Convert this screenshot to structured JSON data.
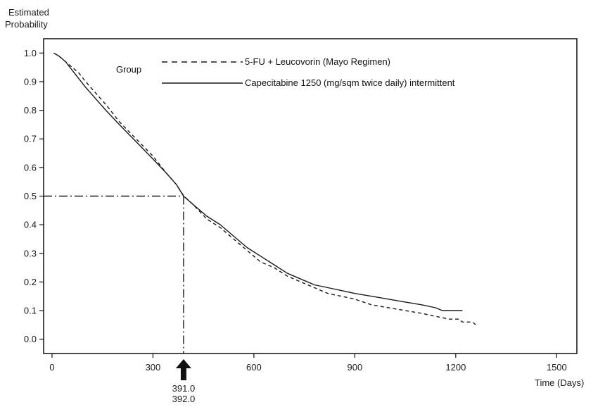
{
  "chart_data": {
    "type": "line",
    "ylabel_line1": "Estimated",
    "ylabel_line2": "Probability",
    "xlabel": "Time (Days)",
    "xlim": [
      -25,
      1560
    ],
    "ylim": [
      -0.05,
      1.05
    ],
    "xticks": [
      0,
      300,
      600,
      900,
      1200,
      1500
    ],
    "yticks": [
      0.0,
      0.1,
      0.2,
      0.3,
      0.4,
      0.5,
      0.6,
      0.7,
      0.8,
      0.9,
      1.0
    ],
    "xtick_labels": [
      "0",
      "300",
      "600",
      "900",
      "1200",
      "1500"
    ],
    "ytick_labels": [
      "0.0",
      "0.1",
      "0.2",
      "0.3",
      "0.4",
      "0.5",
      "0.6",
      "0.7",
      "0.8",
      "0.9",
      "1.0"
    ],
    "grid": false,
    "legend": {
      "title": "Group",
      "position": "top-center"
    },
    "series": [
      {
        "name": "5-FU + Leucovorin (Mayo Regimen)",
        "style": "dashed",
        "color": "#1a1a1a",
        "points": [
          [
            5,
            1.0
          ],
          [
            20,
            0.99
          ],
          [
            40,
            0.97
          ],
          [
            60,
            0.95
          ],
          [
            80,
            0.93
          ],
          [
            100,
            0.9
          ],
          [
            130,
            0.86
          ],
          [
            160,
            0.82
          ],
          [
            200,
            0.76
          ],
          [
            250,
            0.7
          ],
          [
            300,
            0.64
          ],
          [
            340,
            0.58
          ],
          [
            370,
            0.54
          ],
          [
            392,
            0.5
          ],
          [
            420,
            0.47
          ],
          [
            460,
            0.42
          ],
          [
            500,
            0.39
          ],
          [
            540,
            0.35
          ],
          [
            580,
            0.31
          ],
          [
            620,
            0.27
          ],
          [
            660,
            0.25
          ],
          [
            700,
            0.22
          ],
          [
            740,
            0.2
          ],
          [
            780,
            0.18
          ],
          [
            820,
            0.16
          ],
          [
            860,
            0.15
          ],
          [
            900,
            0.14
          ],
          [
            950,
            0.12
          ],
          [
            1000,
            0.11
          ],
          [
            1050,
            0.1
          ],
          [
            1100,
            0.09
          ],
          [
            1140,
            0.08
          ],
          [
            1180,
            0.07
          ],
          [
            1210,
            0.07
          ],
          [
            1220,
            0.06
          ],
          [
            1250,
            0.06
          ],
          [
            1260,
            0.05
          ]
        ]
      },
      {
        "name": "Capecitabine 1250 (mg/sqm twice daily) intermittent",
        "style": "solid",
        "color": "#1a1a1a",
        "points": [
          [
            5,
            1.0
          ],
          [
            20,
            0.99
          ],
          [
            40,
            0.97
          ],
          [
            60,
            0.94
          ],
          [
            80,
            0.91
          ],
          [
            100,
            0.88
          ],
          [
            130,
            0.84
          ],
          [
            160,
            0.8
          ],
          [
            200,
            0.75
          ],
          [
            250,
            0.69
          ],
          [
            300,
            0.63
          ],
          [
            340,
            0.58
          ],
          [
            370,
            0.54
          ],
          [
            391,
            0.5
          ],
          [
            420,
            0.47
          ],
          [
            460,
            0.43
          ],
          [
            500,
            0.4
          ],
          [
            540,
            0.36
          ],
          [
            580,
            0.32
          ],
          [
            620,
            0.29
          ],
          [
            660,
            0.26
          ],
          [
            700,
            0.23
          ],
          [
            740,
            0.21
          ],
          [
            780,
            0.19
          ],
          [
            820,
            0.18
          ],
          [
            860,
            0.17
          ],
          [
            900,
            0.16
          ],
          [
            950,
            0.15
          ],
          [
            1000,
            0.14
          ],
          [
            1050,
            0.13
          ],
          [
            1100,
            0.12
          ],
          [
            1140,
            0.11
          ],
          [
            1160,
            0.1
          ],
          [
            1200,
            0.1
          ],
          [
            1220,
            0.1
          ]
        ]
      }
    ],
    "reference_lines": {
      "median_probability": 0.5,
      "median_time": 391,
      "style": "dash-dot"
    },
    "annotation": {
      "arrow": "up",
      "label_line1": "391.0",
      "label_line2": "392.0"
    }
  }
}
